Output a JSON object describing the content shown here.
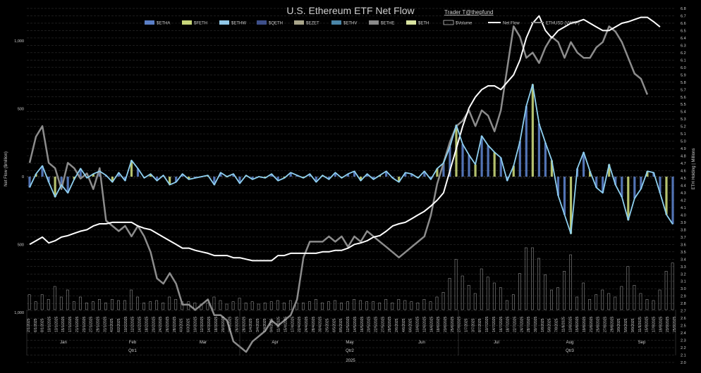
{
  "chart_data": {
    "type": "bar",
    "title": "U.S. Ethereum ETF Net Flow",
    "subtitle": "Trader T@thepfund",
    "ylabel_left": "Net Flow ($million)",
    "ylabel_right": "ETH Holding | Millions",
    "ylim_left": [
      -1000,
      1000
    ],
    "left_ticks": [
      "1,000",
      "500",
      "0",
      "500",
      "1,000"
    ],
    "ylim_right": [
      2.0,
      6.8
    ],
    "right_ticks": [
      "6.8",
      "6.7",
      "6.6",
      "6.5",
      "6.4",
      "6.3",
      "6.2",
      "6.1",
      "6.0",
      "5.9",
      "5.8",
      "5.7",
      "5.6",
      "5.5",
      "5.4",
      "5.3",
      "5.2",
      "5.1",
      "5.0",
      "4.9",
      "4.8",
      "4.7",
      "4.6",
      "4.5",
      "4.4",
      "4.3",
      "4.2",
      "4.1",
      "4.0",
      "3.9",
      "3.8",
      "3.7",
      "3.6",
      "3.5",
      "3.4",
      "3.3",
      "3.2",
      "3.1",
      "3.0",
      "2.9",
      "2.8",
      "2.7",
      "2.6",
      "2.5",
      "2.4",
      "2.3",
      "2.2",
      "2.1",
      "2.0"
    ],
    "legend": [
      "$ETHA",
      "$FETH",
      "$ETHW",
      "$QETH",
      "$EZET",
      "$ETHV",
      "$ETHE",
      "$ETH",
      "$Volume",
      "Net Flow",
      "ETHUSD (VWAP)"
    ],
    "legend_colors": [
      "#5b7fc7",
      "#c8d67a",
      "#8fc6e6",
      "#3d4f8a",
      "#a9a58a",
      "#4a86a8",
      "#8a8a8a",
      "#d8e3a0",
      "#ffffff",
      "#ffffff",
      "#8c8c8c"
    ],
    "months": [
      "Jan",
      "Feb",
      "Mar",
      "Apr",
      "May",
      "Jun",
      "Jul",
      "Aug",
      "Sep"
    ],
    "quarters": [
      "Qtr1",
      "Qtr2",
      "Qtr3"
    ],
    "year": "2025",
    "x_dates": [
      "2/1/2025",
      "6/1/2025",
      "8/1/2025",
      "10/1/2025",
      "13/1/2025",
      "15/1/2025",
      "17/1/2025",
      "21/1/2025",
      "23/1/2025",
      "27/1/2025",
      "29/1/2025",
      "31/1/2025",
      "4/2/2025",
      "6/2/2025",
      "10/2/2025",
      "12/2/2025",
      "14/2/2025",
      "18/2/2025",
      "20/2/2025",
      "24/2/2025",
      "26/2/2025",
      "28/2/2025",
      "4/3/2025",
      "6/3/2025",
      "10/3/2025",
      "12/3/2025",
      "14/3/2025",
      "18/3/2025",
      "20/3/2025",
      "24/3/2025",
      "26/3/2025",
      "28/3/2025",
      "1/4/2025",
      "3/4/2025",
      "7/4/2025",
      "9/4/2025",
      "11/4/2025",
      "15/4/2025",
      "17/4/2025",
      "22/4/2025",
      "24/4/2025",
      "28/4/2025",
      "30/4/2025",
      "2/5/2025",
      "6/5/2025",
      "8/5/2025",
      "12/5/2025",
      "14/5/2025",
      "16/5/2025",
      "20/5/2025",
      "22/5/2025",
      "27/5/2025",
      "29/5/2025",
      "2/6/2025",
      "4/6/2025",
      "6/6/2025",
      "10/6/2025",
      "12/6/2025",
      "16/6/2025",
      "18/6/2025",
      "23/6/2025",
      "25/6/2025",
      "27/6/2025",
      "1/7/2025",
      "3/7/2025",
      "8/7/2025",
      "10/7/2025",
      "14/7/2025",
      "16/7/2025",
      "18/7/2025",
      "22/7/2025",
      "24/7/2025",
      "28/7/2025",
      "30/7/2025",
      "1/8/2025",
      "5/8/2025",
      "7/8/2025",
      "11/8/2025",
      "13/8/2025",
      "15/8/2025",
      "19/8/2025",
      "21/8/2025",
      "25/8/2025",
      "27/8/2025",
      "29/8/2025",
      "3/9/2025",
      "5/9/2025",
      "9/9/2025",
      "11/9/2025",
      "15/9/2025",
      "17/9/2025",
      "19/9/2025",
      "23/9/2025",
      "25/9/2025"
    ],
    "net_flow": [
      -80,
      20,
      80,
      -40,
      -150,
      -60,
      -120,
      -20,
      60,
      -10,
      20,
      40,
      10,
      -40,
      30,
      -30,
      120,
      60,
      -10,
      20,
      -30,
      10,
      -60,
      -40,
      20,
      -20,
      -10,
      0,
      10,
      -60,
      30,
      0,
      20,
      -50,
      10,
      -20,
      0,
      -10,
      20,
      -30,
      -10,
      30,
      10,
      -10,
      20,
      -40,
      10,
      -20,
      30,
      -10,
      20,
      40,
      -30,
      20,
      -20,
      10,
      40,
      -10,
      -40,
      30,
      20,
      -10,
      40,
      -20,
      60,
      100,
      220,
      380,
      240,
      160,
      90,
      300,
      230,
      180,
      140,
      -30,
      80,
      260,
      520,
      680,
      390,
      250,
      120,
      -140,
      -280,
      -420,
      60,
      180,
      40,
      -80,
      -120,
      90,
      -60,
      -150,
      -320,
      -160,
      -90,
      40,
      30,
      -120,
      -280,
      -350
    ],
    "eth_holding": [
      3.6,
      3.65,
      3.7,
      3.62,
      3.65,
      3.7,
      3.72,
      3.75,
      3.78,
      3.8,
      3.85,
      3.88,
      3.88,
      3.9,
      3.9,
      3.9,
      3.9,
      3.85,
      3.82,
      3.8,
      3.75,
      3.7,
      3.65,
      3.6,
      3.55,
      3.55,
      3.52,
      3.5,
      3.48,
      3.45,
      3.45,
      3.45,
      3.42,
      3.42,
      3.4,
      3.38,
      3.38,
      3.38,
      3.38,
      3.45,
      3.45,
      3.48,
      3.48,
      3.48,
      3.48,
      3.48,
      3.5,
      3.5,
      3.52,
      3.52,
      3.55,
      3.6,
      3.62,
      3.65,
      3.7,
      3.72,
      3.78,
      3.85,
      3.88,
      3.9,
      3.95,
      4.0,
      4.05,
      4.12,
      4.2,
      4.3,
      4.6,
      4.9,
      5.2,
      5.45,
      5.6,
      5.7,
      5.75,
      5.75,
      5.7,
      5.8,
      5.9,
      6.1,
      6.4,
      6.6,
      6.7,
      6.5,
      6.4,
      6.5,
      6.55,
      6.6,
      6.62,
      6.65,
      6.6,
      6.55,
      6.5,
      6.5,
      6.55,
      6.6,
      6.62,
      6.65,
      6.68,
      6.68,
      6.62,
      6.55
    ],
    "ethusd_vwap": [
      3300,
      3550,
      3650,
      3300,
      3250,
      3050,
      3300,
      3250,
      3150,
      3200,
      3050,
      3250,
      2750,
      2700,
      2650,
      2700,
      2600,
      2700,
      2600,
      2450,
      2200,
      2150,
      2250,
      2150,
      1950,
      1950,
      1900,
      1950,
      2000,
      1850,
      1850,
      1800,
      1600,
      1550,
      1500,
      1600,
      1650,
      1700,
      1800,
      1750,
      1800,
      1850,
      2000,
      2400,
      2550,
      2550,
      2550,
      2600,
      2550,
      2600,
      2500,
      2600,
      2550,
      2650,
      2600,
      2550,
      2500,
      2450,
      2400,
      2450,
      2500,
      2550,
      2600,
      2800,
      3100,
      3300,
      3500,
      3650,
      3700,
      3800,
      3650,
      3800,
      3750,
      3600,
      3800,
      4200,
      4600,
      4500,
      4300,
      4350,
      4250,
      4400,
      4500,
      4450,
      4300,
      4450,
      4350,
      4300,
      4300,
      4400,
      4450,
      4600,
      4550,
      4450,
      4300,
      4150,
      4100,
      3950
    ]
  }
}
